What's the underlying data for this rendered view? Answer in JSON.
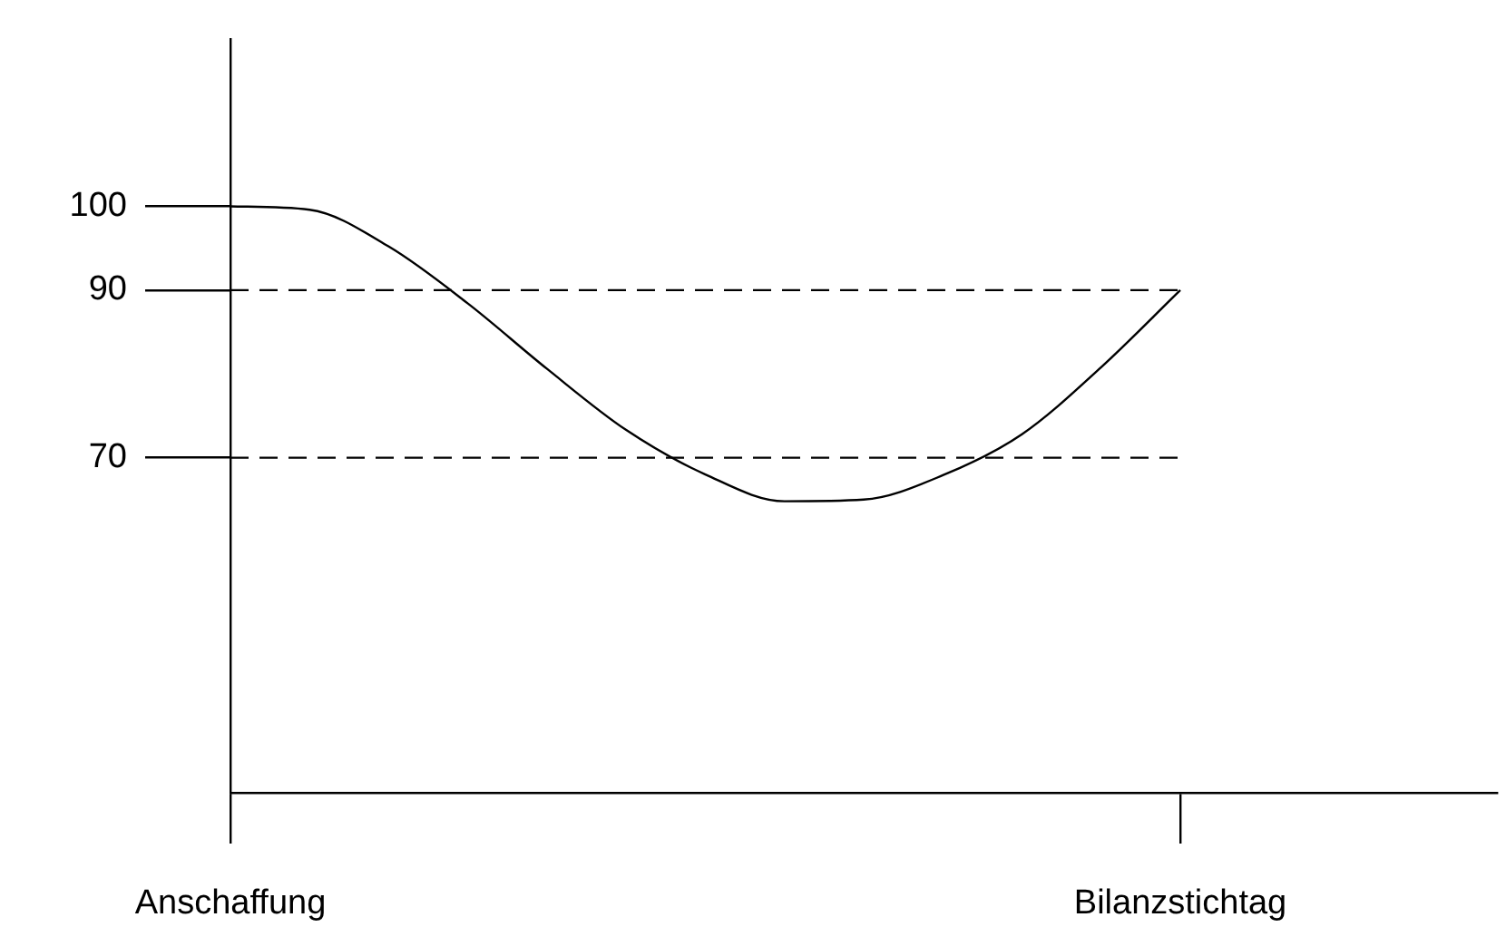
{
  "chart_data": {
    "type": "line",
    "categories": [
      "Anschaffung",
      null,
      null,
      null,
      null,
      null,
      null,
      null,
      null,
      null,
      null,
      null,
      "Bilanzstichtag",
      null,
      null,
      null,
      null
    ],
    "series": [
      {
        "color": "#000000",
        "values": [
          100,
          99.6,
          95.2,
          88.4,
          80.6,
          73.3,
          68,
          64.8,
          65,
          67.9,
          72.8,
          80.8,
          90,
          null,
          null,
          null,
          null
        ]
      }
    ],
    "ylim": [
      30,
      120
    ],
    "yticks": [
      100,
      90,
      70
    ],
    "ref_lines": [
      {
        "axis": "y",
        "value": 90,
        "color": "#000000",
        "line_style": "dashed"
      },
      {
        "axis": "y",
        "value": 70,
        "color": "#000000",
        "line_style": "dashed"
      }
    ],
    "grid": false,
    "legend": false,
    "marker": "none",
    "line_style": "solid"
  }
}
